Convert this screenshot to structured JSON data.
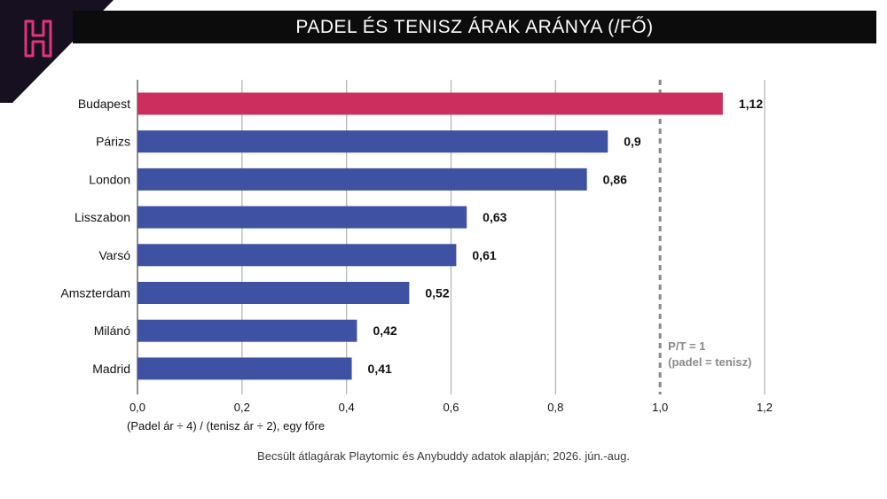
{
  "header": {
    "title": "PADEL ÉS TENISZ ÁRAK ARÁNYA (/FŐ)"
  },
  "logo": {
    "icon": "h-logo-icon",
    "color": "#e0357a"
  },
  "footnote": "Becsült átlagárak Playtomic és Anybuddy adatok alapján; 2026. jún.-aug.",
  "chart_data": {
    "type": "bar",
    "orientation": "horizontal",
    "categories": [
      "Budapest",
      "Párizs",
      "London",
      "Lisszabon",
      "Varsó",
      "Amszterdam",
      "Milánó",
      "Madrid"
    ],
    "values": [
      1.12,
      0.9,
      0.86,
      0.63,
      0.61,
      0.52,
      0.42,
      0.41
    ],
    "value_labels": [
      "1,12",
      "0,9",
      "0,86",
      "0,63",
      "0,61",
      "0,52",
      "0,42",
      "0,41"
    ],
    "highlight": "Budapest",
    "xlim": [
      0,
      1.2
    ],
    "xticks": [
      0,
      0.2,
      0.4,
      0.6,
      0.8,
      1.0,
      1.2
    ],
    "xtick_labels": [
      "0,0",
      "0,2",
      "0,4",
      "0,6",
      "0,8",
      "1,0",
      "1,2"
    ],
    "xlabel": "(Padel ár ÷ 4) / (tenisz ár ÷ 2), egy főre",
    "ylabel": "",
    "grid": true,
    "reference_line": {
      "x": 1.0,
      "label_lines": [
        "P/T = 1",
        "(padel = tenisz)"
      ]
    },
    "colors": {
      "bar": "#3f51a3",
      "highlight": "#cc2f5e",
      "grid": "#b5b5b5",
      "reference": "#8a8a8a"
    }
  }
}
